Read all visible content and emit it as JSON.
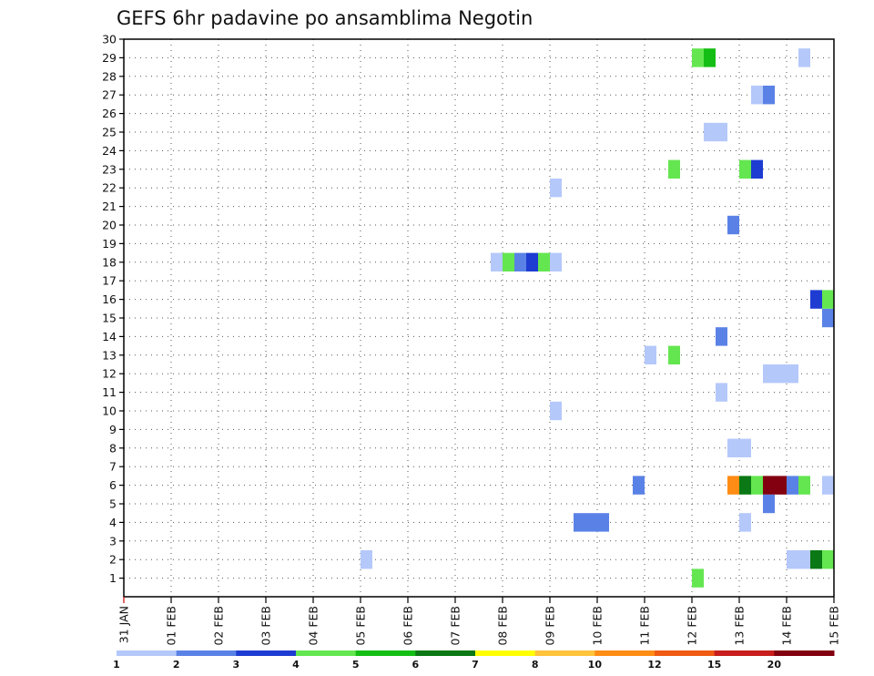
{
  "chart_data": {
    "type": "heatmap",
    "title": "GEFS 6hr padavine po ansamblima Negotin",
    "x_tick_labels": [
      "31 JAN",
      "01 FEB",
      "02 FEB",
      "03 FEB",
      "04 FEB",
      "05 FEB",
      "06 FEB",
      "07 FEB",
      "08 FEB",
      "09 FEB",
      "10 FEB",
      "11 FEB",
      "12 FEB",
      "13 FEB",
      "14 FEB",
      "15 FEB"
    ],
    "y_tick_labels": [
      "1",
      "2",
      "3",
      "4",
      "5",
      "6",
      "7",
      "8",
      "9",
      "10",
      "11",
      "12",
      "13",
      "14",
      "15",
      "16",
      "17",
      "18",
      "19",
      "20",
      "21",
      "22",
      "23",
      "24",
      "25",
      "26",
      "27",
      "28",
      "29",
      "30"
    ],
    "x_range_days": [
      0,
      15
    ],
    "ylim": [
      0,
      30
    ],
    "time_step_hours": 6,
    "grid": "dotted",
    "colorbar": {
      "labels": [
        "1",
        "2",
        "3",
        "4",
        "5",
        "6",
        "7",
        "8",
        "10",
        "12",
        "15",
        "20"
      ],
      "colors": [
        "#b4c8fa",
        "#5a82e6",
        "#1e3cd2",
        "#64e650",
        "#14be14",
        "#0a7814",
        "#ffff00",
        "#ffc33c",
        "#ff8c14",
        "#f05a14",
        "#c81e1e",
        "#82000f"
      ]
    },
    "cells": [
      {
        "member": 1,
        "start_day": 12.0,
        "end_day": 12.25,
        "color": "#64e650"
      },
      {
        "member": 2,
        "start_day": 5.0,
        "end_day": 5.25,
        "color": "#b4c8fa"
      },
      {
        "member": 2,
        "start_day": 14.0,
        "end_day": 14.5,
        "color": "#b4c8fa"
      },
      {
        "member": 2,
        "start_day": 14.5,
        "end_day": 14.75,
        "color": "#0a7814"
      },
      {
        "member": 2,
        "start_day": 14.75,
        "end_day": 15.0,
        "color": "#64e650"
      },
      {
        "member": 4,
        "start_day": 9.5,
        "end_day": 10.25,
        "color": "#5a82e6"
      },
      {
        "member": 4,
        "start_day": 13.0,
        "end_day": 13.25,
        "color": "#b4c8fa"
      },
      {
        "member": 5,
        "start_day": 13.5,
        "end_day": 13.75,
        "color": "#5a82e6"
      },
      {
        "member": 6,
        "start_day": 10.75,
        "end_day": 11.0,
        "color": "#5a82e6"
      },
      {
        "member": 6,
        "start_day": 12.75,
        "end_day": 13.0,
        "color": "#ff8c14"
      },
      {
        "member": 6,
        "start_day": 13.0,
        "end_day": 13.25,
        "color": "#0a7814"
      },
      {
        "member": 6,
        "start_day": 13.25,
        "end_day": 13.5,
        "color": "#64e650"
      },
      {
        "member": 6,
        "start_day": 13.5,
        "end_day": 14.0,
        "color": "#82000f"
      },
      {
        "member": 6,
        "start_day": 14.0,
        "end_day": 14.25,
        "color": "#5a82e6"
      },
      {
        "member": 6,
        "start_day": 14.25,
        "end_day": 14.5,
        "color": "#64e650"
      },
      {
        "member": 6,
        "start_day": 14.75,
        "end_day": 15.0,
        "color": "#b4c8fa"
      },
      {
        "member": 8,
        "start_day": 12.75,
        "end_day": 13.25,
        "color": "#b4c8fa"
      },
      {
        "member": 10,
        "start_day": 9.0,
        "end_day": 9.25,
        "color": "#b4c8fa"
      },
      {
        "member": 11,
        "start_day": 12.5,
        "end_day": 12.75,
        "color": "#b4c8fa"
      },
      {
        "member": 12,
        "start_day": 13.5,
        "end_day": 14.25,
        "color": "#b4c8fa"
      },
      {
        "member": 13,
        "start_day": 11.0,
        "end_day": 11.25,
        "color": "#b4c8fa"
      },
      {
        "member": 13,
        "start_day": 11.5,
        "end_day": 11.75,
        "color": "#64e650"
      },
      {
        "member": 14,
        "start_day": 12.5,
        "end_day": 12.75,
        "color": "#5a82e6"
      },
      {
        "member": 15,
        "start_day": 14.75,
        "end_day": 15.0,
        "color": "#5a82e6"
      },
      {
        "member": 16,
        "start_day": 14.5,
        "end_day": 14.75,
        "color": "#1e3cd2"
      },
      {
        "member": 16,
        "start_day": 14.75,
        "end_day": 15.0,
        "color": "#64e650"
      },
      {
        "member": 18,
        "start_day": 7.75,
        "end_day": 8.0,
        "color": "#b4c8fa"
      },
      {
        "member": 18,
        "start_day": 8.0,
        "end_day": 8.25,
        "color": "#64e650"
      },
      {
        "member": 18,
        "start_day": 8.25,
        "end_day": 8.5,
        "color": "#5a82e6"
      },
      {
        "member": 18,
        "start_day": 8.5,
        "end_day": 8.75,
        "color": "#1e3cd2"
      },
      {
        "member": 18,
        "start_day": 8.75,
        "end_day": 9.0,
        "color": "#64e650"
      },
      {
        "member": 18,
        "start_day": 9.0,
        "end_day": 9.25,
        "color": "#b4c8fa"
      },
      {
        "member": 20,
        "start_day": 12.75,
        "end_day": 13.0,
        "color": "#5a82e6"
      },
      {
        "member": 22,
        "start_day": 9.0,
        "end_day": 9.25,
        "color": "#b4c8fa"
      },
      {
        "member": 23,
        "start_day": 11.5,
        "end_day": 11.75,
        "color": "#64e650"
      },
      {
        "member": 23,
        "start_day": 13.0,
        "end_day": 13.25,
        "color": "#64e650"
      },
      {
        "member": 23,
        "start_day": 13.25,
        "end_day": 13.5,
        "color": "#1e3cd2"
      },
      {
        "member": 25,
        "start_day": 12.25,
        "end_day": 12.75,
        "color": "#b4c8fa"
      },
      {
        "member": 27,
        "start_day": 13.25,
        "end_day": 13.5,
        "color": "#b4c8fa"
      },
      {
        "member": 27,
        "start_day": 13.5,
        "end_day": 13.75,
        "color": "#5a82e6"
      },
      {
        "member": 29,
        "start_day": 12.0,
        "end_day": 12.25,
        "color": "#64e650"
      },
      {
        "member": 29,
        "start_day": 12.25,
        "end_day": 12.5,
        "color": "#14be14"
      },
      {
        "member": 29,
        "start_day": 14.25,
        "end_day": 14.5,
        "color": "#b4c8fa"
      }
    ]
  }
}
